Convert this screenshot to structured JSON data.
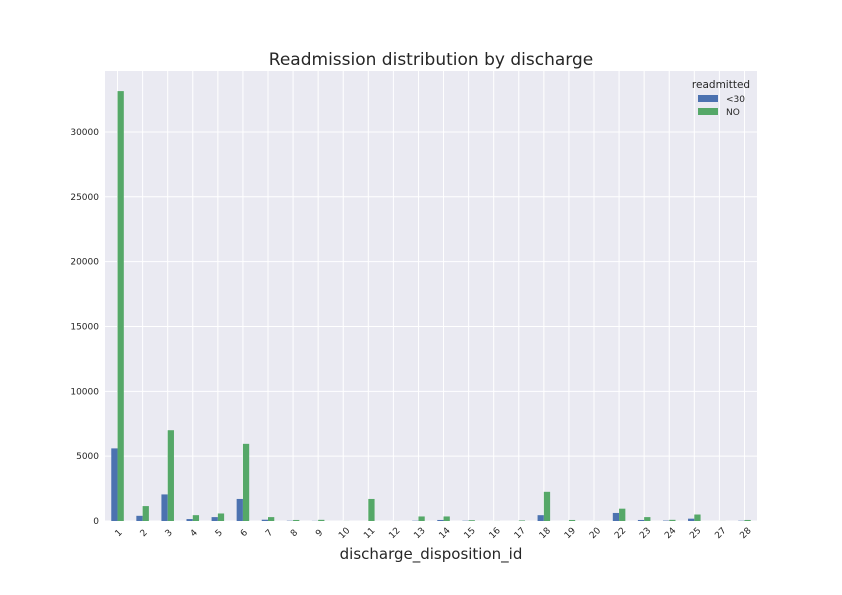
{
  "chart_data": {
    "type": "bar",
    "title": "Readmission distribution by discharge",
    "xlabel": "discharge_disposition_id",
    "ylabel": "",
    "ylim": [
      0,
      34700
    ],
    "yticks": [
      0,
      5000,
      10000,
      15000,
      20000,
      25000,
      30000
    ],
    "grid": true,
    "legend_position": "top-right",
    "legend_title": "readmitted",
    "categories": [
      "1",
      "2",
      "3",
      "4",
      "5",
      "6",
      "7",
      "8",
      "9",
      "10",
      "11",
      "12",
      "13",
      "14",
      "15",
      "16",
      "17",
      "18",
      "19",
      "20",
      "22",
      "23",
      "24",
      "25",
      "27",
      "28"
    ],
    "series": [
      {
        "name": "<30",
        "color": "#4C72B0",
        "values": [
          5600,
          400,
          2050,
          150,
          300,
          1700,
          100,
          20,
          10,
          0,
          0,
          0,
          20,
          80,
          20,
          0,
          0,
          450,
          0,
          0,
          620,
          80,
          30,
          180,
          0,
          20
        ]
      },
      {
        "name": "NO",
        "color": "#55A868",
        "values": [
          33150,
          1150,
          7000,
          450,
          580,
          5950,
          300,
          80,
          90,
          5,
          1700,
          5,
          350,
          350,
          60,
          5,
          40,
          2250,
          80,
          5,
          950,
          300,
          90,
          500,
          5,
          80
        ]
      }
    ]
  }
}
